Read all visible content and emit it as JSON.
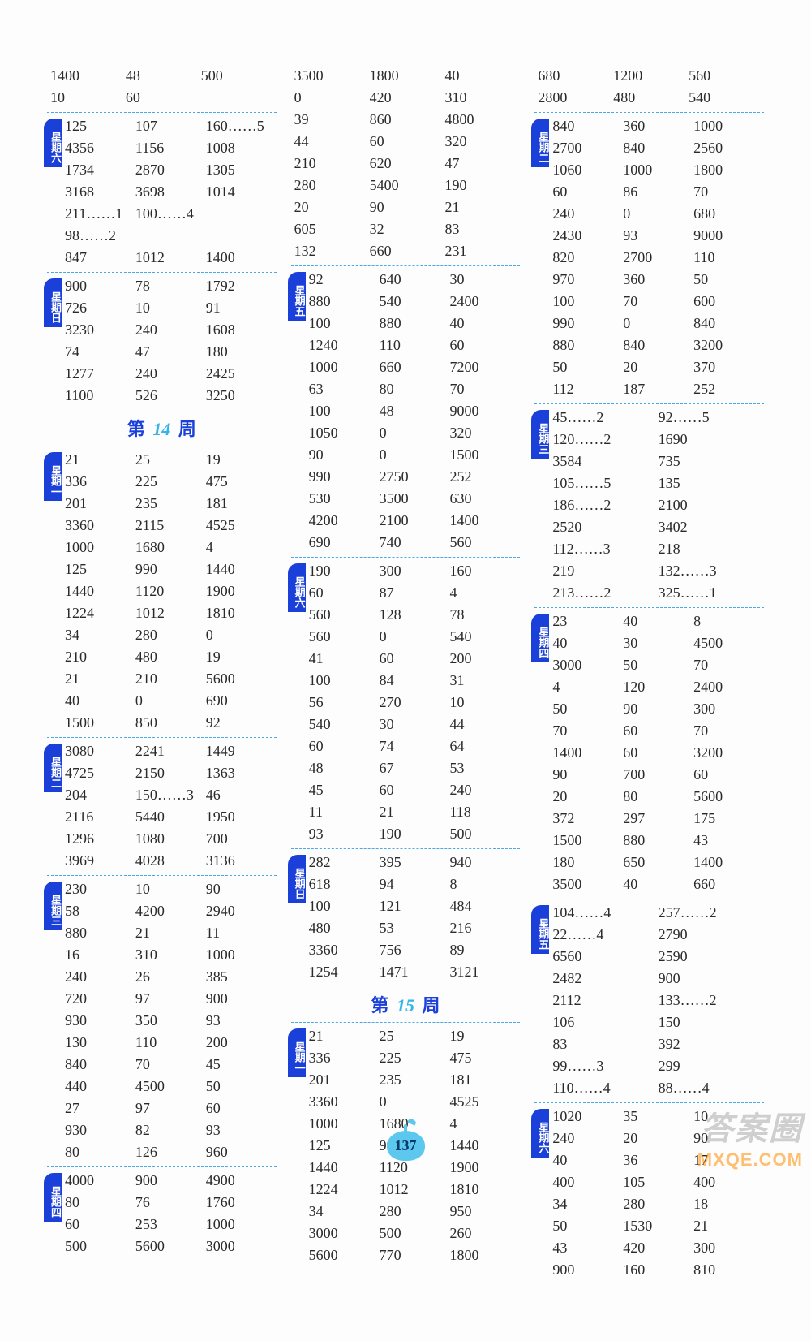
{
  "page_number": "137",
  "watermark_top": "答案圈",
  "watermark_bottom": "MXQE.COM",
  "week14_label": "第 14 周",
  "week15_label": "第 15 周",
  "columns": [
    {
      "sections": [
        {
          "tab": null,
          "rows": [
            [
              "1400",
              "48",
              "500"
            ],
            [
              "10",
              "60",
              ""
            ]
          ]
        },
        {
          "tab": "星期六",
          "rows": [
            [
              "125",
              "107",
              "160……5"
            ],
            [
              "4356",
              "1156",
              "1008"
            ],
            [
              "1734",
              "2870",
              "1305"
            ],
            [
              "3168",
              "3698",
              "1014"
            ],
            [
              "211……1",
              "100……4",
              ""
            ],
            [
              "98……2",
              "",
              ""
            ],
            [
              "847",
              "1012",
              "1400"
            ]
          ]
        },
        {
          "tab": "星期日",
          "rows": [
            [
              "900",
              "78",
              "1792"
            ],
            [
              "726",
              "10",
              "91"
            ],
            [
              "3230",
              "240",
              "1608"
            ],
            [
              "74",
              "47",
              "180"
            ],
            [
              "1277",
              "240",
              "2425"
            ],
            [
              "1100",
              "526",
              "3250"
            ]
          ]
        },
        {
          "heading": "week14"
        },
        {
          "tab": "星期一",
          "rows": [
            [
              "21",
              "25",
              "19"
            ],
            [
              "336",
              "225",
              "475"
            ],
            [
              "201",
              "235",
              "181"
            ],
            [
              "3360",
              "2115",
              "4525"
            ],
            [
              "1000",
              "1680",
              "4"
            ],
            [
              "125",
              "990",
              "1440"
            ],
            [
              "1440",
              "1120",
              "1900"
            ],
            [
              "1224",
              "1012",
              "1810"
            ],
            [
              "34",
              "280",
              "0"
            ],
            [
              "210",
              "480",
              "19"
            ],
            [
              "21",
              "210",
              "5600"
            ],
            [
              "40",
              "0",
              "690"
            ],
            [
              "1500",
              "850",
              "92"
            ]
          ]
        },
        {
          "tab": "星期二",
          "rows": [
            [
              "3080",
              "2241",
              "1449"
            ],
            [
              "4725",
              "2150",
              "1363"
            ],
            [
              "204",
              "150……3",
              "46"
            ],
            [
              "2116",
              "5440",
              "1950"
            ],
            [
              "1296",
              "1080",
              "700"
            ],
            [
              "3969",
              "4028",
              "3136"
            ]
          ]
        },
        {
          "tab": "星期三",
          "rows": [
            [
              "230",
              "10",
              "90"
            ],
            [
              "58",
              "4200",
              "2940"
            ],
            [
              "880",
              "21",
              "11"
            ],
            [
              "16",
              "310",
              "1000"
            ],
            [
              "240",
              "26",
              "385"
            ],
            [
              "720",
              "97",
              "900"
            ],
            [
              "930",
              "350",
              "93"
            ],
            [
              "130",
              "110",
              "200"
            ],
            [
              "840",
              "70",
              "45"
            ],
            [
              "440",
              "4500",
              "50"
            ],
            [
              "27",
              "97",
              "60"
            ],
            [
              "930",
              "82",
              "93"
            ],
            [
              "80",
              "126",
              "960"
            ]
          ]
        },
        {
          "tab": "星期四",
          "rows": [
            [
              "4000",
              "900",
              "4900"
            ],
            [
              "80",
              "76",
              "1760"
            ],
            [
              "60",
              "253",
              "1000"
            ],
            [
              "500",
              "5600",
              "3000"
            ]
          ]
        }
      ]
    },
    {
      "sections": [
        {
          "tab": null,
          "rows": [
            [
              "3500",
              "1800",
              "40"
            ],
            [
              "0",
              "420",
              "310"
            ],
            [
              "39",
              "860",
              "4800"
            ],
            [
              "44",
              "60",
              "320"
            ],
            [
              "210",
              "620",
              "47"
            ],
            [
              "280",
              "5400",
              "190"
            ],
            [
              "20",
              "90",
              "21"
            ],
            [
              "605",
              "32",
              "83"
            ],
            [
              "132",
              "660",
              "231"
            ]
          ]
        },
        {
          "tab": "星期五",
          "rows": [
            [
              "92",
              "640",
              "30"
            ],
            [
              "880",
              "540",
              "2400"
            ],
            [
              "100",
              "880",
              "40"
            ],
            [
              "1240",
              "110",
              "60"
            ],
            [
              "1000",
              "660",
              "7200"
            ],
            [
              "63",
              "80",
              "70"
            ],
            [
              "100",
              "48",
              "9000"
            ],
            [
              "1050",
              "0",
              "320"
            ],
            [
              "90",
              "0",
              "1500"
            ],
            [
              "990",
              "2750",
              "252"
            ],
            [
              "530",
              "3500",
              "630"
            ],
            [
              "4200",
              "2100",
              "1400"
            ],
            [
              "690",
              "740",
              "560"
            ]
          ]
        },
        {
          "tab": "星期六",
          "rows": [
            [
              "190",
              "300",
              "160"
            ],
            [
              "60",
              "87",
              "4"
            ],
            [
              "560",
              "128",
              "78"
            ],
            [
              "560",
              "0",
              "540"
            ],
            [
              "41",
              "60",
              "200"
            ],
            [
              "100",
              "84",
              "31"
            ],
            [
              "56",
              "270",
              "10"
            ],
            [
              "540",
              "30",
              "44"
            ],
            [
              "60",
              "74",
              "64"
            ],
            [
              "48",
              "67",
              "53"
            ],
            [
              "45",
              "60",
              "240"
            ],
            [
              "11",
              "21",
              "118"
            ],
            [
              "93",
              "190",
              "500"
            ]
          ]
        },
        {
          "tab": "星期日",
          "rows": [
            [
              "282",
              "395",
              "940"
            ],
            [
              "618",
              "94",
              "8"
            ],
            [
              "100",
              "121",
              "484"
            ],
            [
              "480",
              "53",
              "216"
            ],
            [
              "3360",
              "756",
              "89"
            ],
            [
              "1254",
              "1471",
              "3121"
            ]
          ]
        },
        {
          "heading": "week15"
        },
        {
          "tab": "星期一",
          "rows": [
            [
              "21",
              "25",
              "19"
            ],
            [
              "336",
              "225",
              "475"
            ],
            [
              "201",
              "235",
              "181"
            ],
            [
              "3360",
              "0",
              "4525"
            ],
            [
              "1000",
              "1680",
              "4"
            ],
            [
              "125",
              "990",
              "1440"
            ],
            [
              "1440",
              "1120",
              "1900"
            ],
            [
              "1224",
              "1012",
              "1810"
            ],
            [
              "34",
              "280",
              "950"
            ],
            [
              "3000",
              "500",
              "260"
            ],
            [
              "5600",
              "770",
              "1800"
            ]
          ]
        }
      ]
    },
    {
      "sections": [
        {
          "tab": null,
          "rows": [
            [
              "680",
              "1200",
              "560"
            ],
            [
              "2800",
              "480",
              "540"
            ]
          ]
        },
        {
          "tab": "星期二",
          "rows": [
            [
              "840",
              "360",
              "1000"
            ],
            [
              "2700",
              "840",
              "2560"
            ],
            [
              "1060",
              "1000",
              "1800"
            ],
            [
              "60",
              "86",
              "70"
            ],
            [
              "240",
              "0",
              "680"
            ],
            [
              "2430",
              "93",
              "9000"
            ],
            [
              "820",
              "2700",
              "110"
            ],
            [
              "970",
              "360",
              "50"
            ],
            [
              "100",
              "70",
              "600"
            ],
            [
              "990",
              "0",
              "840"
            ],
            [
              "880",
              "840",
              "3200"
            ],
            [
              "50",
              "20",
              "370"
            ],
            [
              "112",
              "187",
              "252"
            ]
          ]
        },
        {
          "tab": "星期三",
          "cols": 2,
          "rows": [
            [
              "45……2",
              "92……5"
            ],
            [
              "120……2",
              "1690"
            ],
            [
              "3584",
              "735"
            ],
            [
              "105……5",
              "135"
            ],
            [
              "186……2",
              "2100"
            ],
            [
              "2520",
              "3402"
            ],
            [
              "112……3",
              "218"
            ],
            [
              "219",
              "132……3"
            ],
            [
              "213……2",
              "325……1"
            ]
          ]
        },
        {
          "tab": "星期四",
          "rows": [
            [
              "23",
              "40",
              "8"
            ],
            [
              "40",
              "30",
              "4500"
            ],
            [
              "3000",
              "50",
              "70"
            ],
            [
              "4",
              "120",
              "2400"
            ],
            [
              "50",
              "90",
              "300"
            ],
            [
              "70",
              "60",
              "70"
            ],
            [
              "1400",
              "60",
              "3200"
            ],
            [
              "90",
              "700",
              "60"
            ],
            [
              "20",
              "80",
              "5600"
            ],
            [
              "372",
              "297",
              "175"
            ],
            [
              "1500",
              "880",
              "43"
            ],
            [
              "180",
              "650",
              "1400"
            ],
            [
              "3500",
              "40",
              "660"
            ]
          ]
        },
        {
          "tab": "星期五",
          "cols": 2,
          "rows": [
            [
              "104……4",
              "257……2"
            ],
            [
              "22……4",
              "2790"
            ],
            [
              "6560",
              "2590"
            ],
            [
              "2482",
              "900"
            ],
            [
              "2112",
              "133……2"
            ],
            [
              "106",
              "150"
            ],
            [
              "83",
              "392"
            ],
            [
              "99……3",
              "299"
            ],
            [
              "110……4",
              "88……4"
            ]
          ]
        },
        {
          "tab": "星期六",
          "rows": [
            [
              "1020",
              "35",
              "10"
            ],
            [
              "240",
              "20",
              "90"
            ],
            [
              "40",
              "36",
              "17"
            ],
            [
              "400",
              "105",
              "400"
            ],
            [
              "34",
              "280",
              "18"
            ],
            [
              "50",
              "1530",
              "21"
            ],
            [
              "43",
              "420",
              "300"
            ],
            [
              "900",
              "160",
              "810"
            ]
          ]
        }
      ]
    }
  ]
}
